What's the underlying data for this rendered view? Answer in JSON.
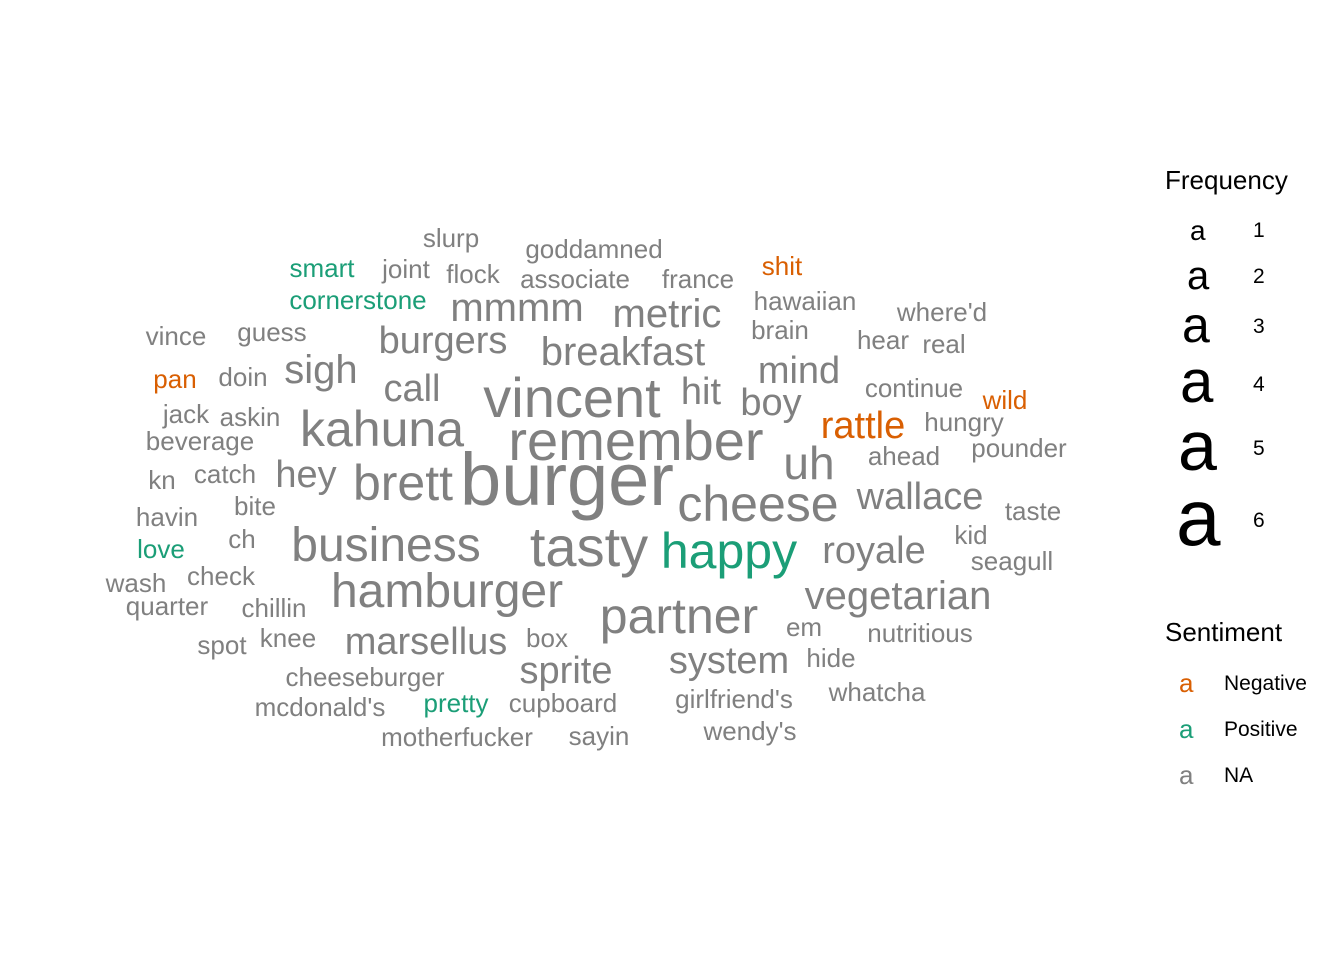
{
  "colors": {
    "Negative": "#d95f02",
    "Positive": "#1b9e77",
    "NA": "#808080"
  },
  "chart_data": {
    "type": "wordcloud",
    "words": [
      {
        "text": "burger",
        "freq": 6,
        "sentiment": "NA"
      },
      {
        "text": "vincent",
        "freq": 5,
        "sentiment": "NA"
      },
      {
        "text": "remember",
        "freq": 5,
        "sentiment": "NA"
      },
      {
        "text": "tasty",
        "freq": 5,
        "sentiment": "NA"
      },
      {
        "text": "happy",
        "freq": 4,
        "sentiment": "Positive"
      },
      {
        "text": "cheese",
        "freq": 4,
        "sentiment": "NA"
      },
      {
        "text": "hamburger",
        "freq": 4,
        "sentiment": "NA"
      },
      {
        "text": "kahuna",
        "freq": 4,
        "sentiment": "NA"
      },
      {
        "text": "business",
        "freq": 4,
        "sentiment": "NA"
      },
      {
        "text": "brett",
        "freq": 4,
        "sentiment": "NA"
      },
      {
        "text": "partner",
        "freq": 4,
        "sentiment": "NA"
      },
      {
        "text": "uh",
        "freq": 4,
        "sentiment": "NA"
      },
      {
        "text": "breakfast",
        "freq": 3,
        "sentiment": "NA"
      },
      {
        "text": "mmmm",
        "freq": 3,
        "sentiment": "NA"
      },
      {
        "text": "metric",
        "freq": 3,
        "sentiment": "NA"
      },
      {
        "text": "burgers",
        "freq": 3,
        "sentiment": "NA"
      },
      {
        "text": "sigh",
        "freq": 3,
        "sentiment": "NA"
      },
      {
        "text": "mind",
        "freq": 3,
        "sentiment": "NA"
      },
      {
        "text": "boy",
        "freq": 3,
        "sentiment": "NA"
      },
      {
        "text": "hit",
        "freq": 3,
        "sentiment": "NA"
      },
      {
        "text": "call",
        "freq": 3,
        "sentiment": "NA"
      },
      {
        "text": "hey",
        "freq": 3,
        "sentiment": "NA"
      },
      {
        "text": "wallace",
        "freq": 3,
        "sentiment": "NA"
      },
      {
        "text": "royale",
        "freq": 3,
        "sentiment": "NA"
      },
      {
        "text": "vegetarian",
        "freq": 3,
        "sentiment": "NA"
      },
      {
        "text": "marsellus",
        "freq": 3,
        "sentiment": "NA"
      },
      {
        "text": "sprite",
        "freq": 3,
        "sentiment": "NA"
      },
      {
        "text": "system",
        "freq": 3,
        "sentiment": "NA"
      },
      {
        "text": "rattle",
        "freq": 3,
        "sentiment": "Negative"
      },
      {
        "text": "slurp",
        "freq": 1,
        "sentiment": "NA"
      },
      {
        "text": "goddamned",
        "freq": 1,
        "sentiment": "NA"
      },
      {
        "text": "smart",
        "freq": 1,
        "sentiment": "Positive"
      },
      {
        "text": "joint",
        "freq": 1,
        "sentiment": "NA"
      },
      {
        "text": "flock",
        "freq": 1,
        "sentiment": "NA"
      },
      {
        "text": "associate",
        "freq": 1,
        "sentiment": "NA"
      },
      {
        "text": "france",
        "freq": 1,
        "sentiment": "NA"
      },
      {
        "text": "shit",
        "freq": 1,
        "sentiment": "Negative"
      },
      {
        "text": "cornerstone",
        "freq": 1,
        "sentiment": "Positive"
      },
      {
        "text": "hawaiian",
        "freq": 1,
        "sentiment": "NA"
      },
      {
        "text": "where'd",
        "freq": 1,
        "sentiment": "NA"
      },
      {
        "text": "vince",
        "freq": 1,
        "sentiment": "NA"
      },
      {
        "text": "guess",
        "freq": 1,
        "sentiment": "NA"
      },
      {
        "text": "brain",
        "freq": 1,
        "sentiment": "NA"
      },
      {
        "text": "hear",
        "freq": 1,
        "sentiment": "NA"
      },
      {
        "text": "real",
        "freq": 1,
        "sentiment": "NA"
      },
      {
        "text": "pan",
        "freq": 1,
        "sentiment": "Negative"
      },
      {
        "text": "doin",
        "freq": 1,
        "sentiment": "NA"
      },
      {
        "text": "continue",
        "freq": 1,
        "sentiment": "NA"
      },
      {
        "text": "wild",
        "freq": 1,
        "sentiment": "Negative"
      },
      {
        "text": "jack",
        "freq": 1,
        "sentiment": "NA"
      },
      {
        "text": "askin",
        "freq": 1,
        "sentiment": "NA"
      },
      {
        "text": "hungry",
        "freq": 1,
        "sentiment": "NA"
      },
      {
        "text": "beverage",
        "freq": 1,
        "sentiment": "NA"
      },
      {
        "text": "pounder",
        "freq": 1,
        "sentiment": "NA"
      },
      {
        "text": "ahead",
        "freq": 1,
        "sentiment": "NA"
      },
      {
        "text": "kn",
        "freq": 1,
        "sentiment": "NA"
      },
      {
        "text": "catch",
        "freq": 1,
        "sentiment": "NA"
      },
      {
        "text": "bite",
        "freq": 1,
        "sentiment": "NA"
      },
      {
        "text": "taste",
        "freq": 1,
        "sentiment": "NA"
      },
      {
        "text": "havin",
        "freq": 1,
        "sentiment": "NA"
      },
      {
        "text": "kid",
        "freq": 1,
        "sentiment": "NA"
      },
      {
        "text": "ch",
        "freq": 1,
        "sentiment": "NA"
      },
      {
        "text": "love",
        "freq": 1,
        "sentiment": "Positive"
      },
      {
        "text": "seagull",
        "freq": 1,
        "sentiment": "NA"
      },
      {
        "text": "wash",
        "freq": 1,
        "sentiment": "NA"
      },
      {
        "text": "check",
        "freq": 1,
        "sentiment": "NA"
      },
      {
        "text": "quarter",
        "freq": 1,
        "sentiment": "NA"
      },
      {
        "text": "chillin",
        "freq": 1,
        "sentiment": "NA"
      },
      {
        "text": "em",
        "freq": 1,
        "sentiment": "NA"
      },
      {
        "text": "nutritious",
        "freq": 1,
        "sentiment": "NA"
      },
      {
        "text": "spot",
        "freq": 1,
        "sentiment": "NA"
      },
      {
        "text": "knee",
        "freq": 1,
        "sentiment": "NA"
      },
      {
        "text": "box",
        "freq": 1,
        "sentiment": "NA"
      },
      {
        "text": "hide",
        "freq": 1,
        "sentiment": "NA"
      },
      {
        "text": "cheeseburger",
        "freq": 1,
        "sentiment": "NA"
      },
      {
        "text": "whatcha",
        "freq": 1,
        "sentiment": "NA"
      },
      {
        "text": "mcdonald's",
        "freq": 1,
        "sentiment": "NA"
      },
      {
        "text": "pretty",
        "freq": 1,
        "sentiment": "Positive"
      },
      {
        "text": "cupboard",
        "freq": 1,
        "sentiment": "NA"
      },
      {
        "text": "girlfriend's",
        "freq": 1,
        "sentiment": "NA"
      },
      {
        "text": "motherfucker",
        "freq": 1,
        "sentiment": "NA"
      },
      {
        "text": "sayin",
        "freq": 1,
        "sentiment": "NA"
      },
      {
        "text": "wendy's",
        "freq": 1,
        "sentiment": "NA"
      }
    ],
    "legend": {
      "frequency_title": "Frequency",
      "frequency_keys": [
        {
          "glyph": "a",
          "value": "1"
        },
        {
          "glyph": "a",
          "value": "2"
        },
        {
          "glyph": "a",
          "value": "3"
        },
        {
          "glyph": "a",
          "value": "4"
        },
        {
          "glyph": "a",
          "value": "5"
        },
        {
          "glyph": "a",
          "value": "6"
        }
      ],
      "sentiment_title": "Sentiment",
      "sentiment_keys": [
        {
          "glyph": "a",
          "label": "Negative"
        },
        {
          "glyph": "a",
          "label": "Positive"
        },
        {
          "glyph": "a",
          "label": "NA"
        }
      ]
    }
  }
}
